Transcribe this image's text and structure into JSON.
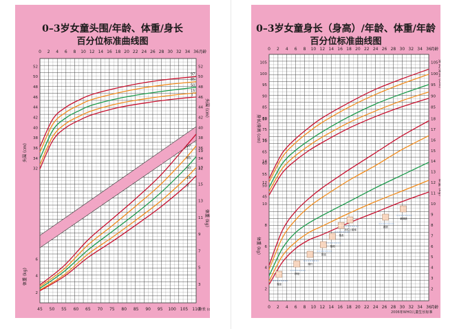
{
  "left_panel": {
    "title_line1": "0–3岁女童头围/年龄、体重/身长",
    "title_line2": "百分位标准曲线图",
    "top_axis_unit": "月龄",
    "top_ticks": [
      "0",
      "2",
      "4",
      "6",
      "8",
      "10",
      "12",
      "14",
      "16",
      "18",
      "20",
      "22",
      "24",
      "26",
      "28",
      "30",
      "32",
      "34",
      "36"
    ],
    "head_axis_label": "头围 (cm)",
    "head_axis_label_left": "头围 (cm)",
    "head_ticks": [
      "32",
      "34",
      "36",
      "38",
      "40",
      "42",
      "44",
      "46",
      "48",
      "50",
      "52"
    ],
    "weight_axis_label": "体重 (kg)",
    "weight_axis_label_left": "体重 (kg)",
    "weight_right_ticks": [
      "3",
      "5",
      "7",
      "9",
      "11",
      "13",
      "15",
      "17",
      "19"
    ],
    "weight_left_ticks": [
      "2",
      "4",
      "6"
    ],
    "bottom_axis_unit": "身长 (cm)",
    "bottom_ticks": [
      "45",
      "50",
      "55",
      "60",
      "65",
      "70",
      "75",
      "80",
      "85",
      "90",
      "95",
      "100",
      "105",
      "110"
    ],
    "percentile_labels_head": [
      "97",
      "85",
      "50",
      "15",
      "3"
    ],
    "percentile_labels_weight": [
      "97",
      "85",
      "50",
      "15",
      "3"
    ]
  },
  "right_panel": {
    "title_line1": "0–3岁女童身长（身高）/年龄、体重/年龄",
    "title_line2": "百分位标准曲线图",
    "top_axis_unit": "月龄",
    "top_ticks": [
      "0",
      "2",
      "4",
      "6",
      "8",
      "10",
      "12",
      "14",
      "16",
      "18",
      "20",
      "22",
      "24",
      "26",
      "28",
      "30",
      "32",
      "34",
      "36"
    ],
    "height_axis_label": "身长/身高 (cm)",
    "height_ticks": [
      "45",
      "50",
      "55",
      "60",
      "65",
      "70",
      "75",
      "80",
      "85",
      "90",
      "95",
      "100",
      "105"
    ],
    "weight_axis_label": "体重 (kg)",
    "weight_ticks": [
      "2",
      "3",
      "4",
      "5",
      "6",
      "7",
      "8",
      "9",
      "10",
      "11",
      "12",
      "13",
      "14",
      "15",
      "16",
      "17",
      "18"
    ],
    "weight_left_ticks": [
      "2",
      "4",
      "6",
      "8",
      "10",
      "12",
      "14",
      "16",
      "18"
    ],
    "bottom_axis_unit": "月龄",
    "milestones": [
      "独坐",
      "扶站",
      "爬行",
      "扶走",
      "独站",
      "独走",
      "扶栏上楼梯",
      "跳跃",
      "单脚跳"
    ],
    "credit": "2006年WHO儿童生长标准"
  },
  "colors": {
    "panel": "#f1a6c5",
    "grid_major": "#444444",
    "grid_minor": "#777777",
    "curve_outer": "#c8102e",
    "curve_mid": "#f28c1c",
    "curve_center": "#1a9a4a"
  },
  "chart_data": [
    {
      "type": "line",
      "title": "0–3岁女童头围/年龄",
      "xlabel": "月龄",
      "ylabel": "头围 (cm)",
      "xlim": [
        0,
        36
      ],
      "ylim": [
        31,
        53
      ],
      "x": [
        0,
        3,
        6,
        9,
        12,
        18,
        24,
        30,
        36
      ],
      "series": [
        {
          "name": "97",
          "values": [
            36.2,
            41.7,
            44.0,
            45.4,
            46.5,
            47.8,
            48.8,
            49.5,
            50.0
          ]
        },
        {
          "name": "85",
          "values": [
            35.2,
            40.7,
            43.0,
            44.4,
            45.5,
            46.8,
            47.8,
            48.5,
            49.0
          ]
        },
        {
          "name": "50",
          "values": [
            33.9,
            39.5,
            41.9,
            43.3,
            44.4,
            45.7,
            46.6,
            47.3,
            47.9
          ]
        },
        {
          "name": "15",
          "values": [
            32.7,
            38.3,
            40.8,
            42.2,
            43.3,
            44.7,
            45.6,
            46.3,
            46.8
          ]
        },
        {
          "name": "3",
          "values": [
            31.9,
            37.5,
            40.0,
            41.4,
            42.5,
            43.9,
            44.8,
            45.5,
            46.0
          ]
        }
      ]
    },
    {
      "type": "line",
      "title": "0–3岁女童体重/身长",
      "xlabel": "身长 (cm)",
      "ylabel": "体重 (kg)",
      "xlim": [
        45,
        110
      ],
      "ylim": [
        1,
        20
      ],
      "x": [
        45,
        55,
        65,
        75,
        85,
        95,
        105,
        110
      ],
      "series": [
        {
          "name": "97",
          "values": [
            2.9,
            5.2,
            8.3,
            10.8,
            13.3,
            16.0,
            19.3,
            21.0
          ]
        },
        {
          "name": "85",
          "values": [
            2.7,
            4.8,
            7.7,
            10.0,
            12.4,
            14.9,
            17.9,
            19.6
          ]
        },
        {
          "name": "50",
          "values": [
            2.5,
            4.5,
            7.1,
            9.3,
            11.5,
            13.9,
            16.7,
            18.3
          ]
        },
        {
          "name": "15",
          "values": [
            2.3,
            4.1,
            6.6,
            8.6,
            10.7,
            12.9,
            15.5,
            17.0
          ]
        },
        {
          "name": "3",
          "values": [
            2.2,
            3.9,
            6.2,
            8.1,
            10.1,
            12.2,
            14.6,
            16.0
          ]
        }
      ]
    },
    {
      "type": "line",
      "title": "0–3岁女童身长（身高）/年龄",
      "xlabel": "月龄",
      "ylabel": "身长/身高 (cm)",
      "xlim": [
        0,
        36
      ],
      "ylim": [
        43,
        108
      ],
      "x": [
        0,
        3,
        6,
        9,
        12,
        18,
        24,
        30,
        36
      ],
      "series": [
        {
          "name": "97",
          "values": [
            53.0,
            64.5,
            70.9,
            75.9,
            80.2,
            87.0,
            93.0,
            97.7,
            102.0
          ]
        },
        {
          "name": "85",
          "values": [
            51.5,
            62.7,
            69.1,
            74.0,
            78.2,
            85.0,
            90.7,
            95.5,
            99.7
          ]
        },
        {
          "name": "50",
          "values": [
            49.1,
            59.8,
            65.7,
            70.1,
            74.0,
            80.7,
            86.4,
            91.0,
            95.1
          ]
        },
        {
          "name": "15",
          "values": [
            47.3,
            57.6,
            63.4,
            67.8,
            71.6,
            78.1,
            83.3,
            87.9,
            91.8
          ]
        },
        {
          "name": "3",
          "values": [
            45.6,
            55.6,
            61.2,
            65.6,
            69.2,
            75.6,
            80.8,
            85.2,
            89.0
          ]
        }
      ]
    },
    {
      "type": "line",
      "title": "0–3岁女童体重/年龄",
      "xlabel": "月龄",
      "ylabel": "体重 (kg)",
      "xlim": [
        0,
        36
      ],
      "ylim": [
        1,
        19
      ],
      "x": [
        0,
        3,
        6,
        9,
        12,
        18,
        24,
        30,
        36
      ],
      "series": [
        {
          "name": "97",
          "values": [
            4.2,
            7.5,
            9.3,
            10.5,
            11.5,
            13.2,
            14.8,
            16.4,
            17.8
          ]
        },
        {
          "name": "85",
          "values": [
            3.8,
            6.8,
            8.5,
            9.7,
            10.6,
            12.2,
            13.6,
            15.1,
            16.4
          ]
        },
        {
          "name": "50",
          "values": [
            3.2,
            5.8,
            7.3,
            8.2,
            8.9,
            10.2,
            11.5,
            12.7,
            13.9
          ]
        },
        {
          "name": "15",
          "values": [
            2.7,
            5.1,
            6.4,
            7.3,
            7.9,
            9.1,
            10.2,
            11.2,
            12.2
          ]
        },
        {
          "name": "3",
          "values": [
            2.4,
            4.5,
            5.8,
            6.6,
            7.1,
            8.2,
            9.2,
            10.2,
            11.1
          ]
        }
      ]
    }
  ]
}
